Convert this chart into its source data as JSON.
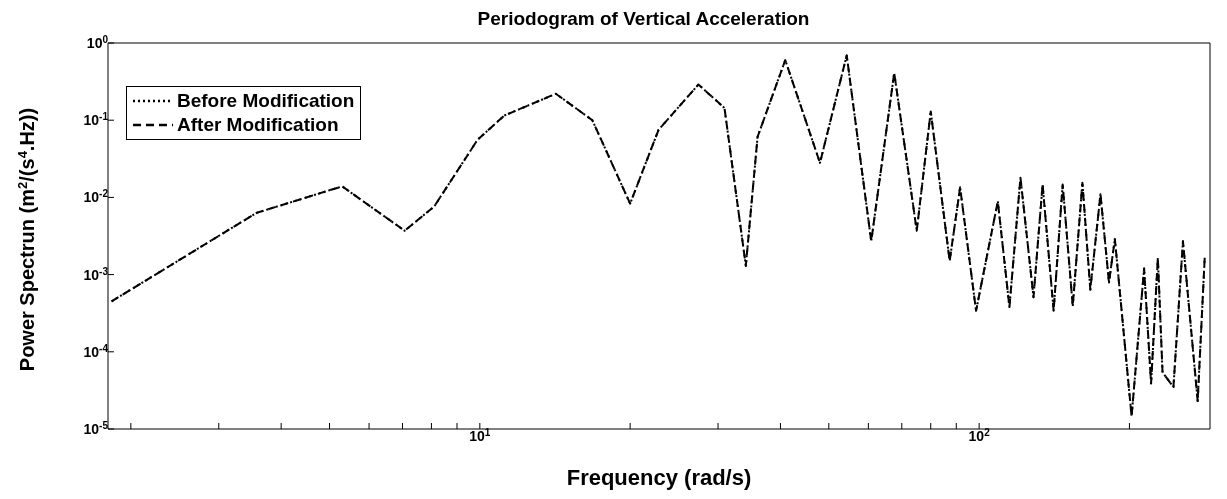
{
  "chart_data": {
    "type": "line",
    "title": "Periodogram of Vertical Acceleration",
    "xlabel": "Frequency (rad/s)",
    "ylabel": "Power Spectrun (m$^{2}$/(s$^{4}$.Hz))",
    "x": [
      1.83,
      3.57,
      5.3,
      7.07,
      8.1,
      9.9,
      11.2,
      14.2,
      16.8,
      20,
      22.8,
      27.4,
      30.9,
      34.1,
      36,
      40.9,
      48,
      54.3,
      60.8,
      67.6,
      75,
      80,
      87.3,
      91.6,
      98.6,
      109,
      115,
      121,
      128.5,
      134,
      141,
      147,
      154,
      161,
      167,
      175,
      182,
      187,
      202,
      214,
      221,
      228,
      233,
      245,
      256,
      274,
      283
    ],
    "series": [
      {
        "name": "Before Modification",
        "color": "#000000",
        "line_style": "dotted",
        "values": [
          0.00045,
          0.0063,
          0.0139,
          0.0037,
          0.0076,
          0.056,
          0.115,
          0.22,
          0.1,
          0.0083,
          0.075,
          0.29,
          0.144,
          0.0013,
          0.061,
          0.6,
          0.028,
          0.69,
          0.0027,
          0.41,
          0.0037,
          0.13,
          0.0015,
          0.0135,
          0.00034,
          0.0089,
          0.00038,
          0.018,
          0.00051,
          0.0147,
          0.00034,
          0.0147,
          0.00039,
          0.0155,
          0.00064,
          0.011,
          0.00079,
          0.0029,
          1.45e-05,
          0.0012,
          3.9e-05,
          0.00165,
          5.4e-05,
          3.5e-05,
          0.0027,
          2.3e-05,
          0.00165
        ]
      },
      {
        "name": "After Modification",
        "color": "#000000",
        "line_style": "dashed",
        "values": [
          0.00045,
          0.0063,
          0.0139,
          0.0037,
          0.0076,
          0.056,
          0.115,
          0.22,
          0.1,
          0.0083,
          0.075,
          0.29,
          0.144,
          0.0013,
          0.061,
          0.6,
          0.028,
          0.69,
          0.0027,
          0.41,
          0.0037,
          0.13,
          0.0015,
          0.0135,
          0.00034,
          0.0089,
          0.00038,
          0.018,
          0.00051,
          0.0147,
          0.00034,
          0.0147,
          0.00039,
          0.0155,
          0.00064,
          0.011,
          0.00079,
          0.0029,
          1.45e-05,
          0.0012,
          3.9e-05,
          0.00165,
          5.4e-05,
          3.5e-05,
          0.0027,
          2.3e-05,
          0.00165
        ]
      }
    ],
    "log": "xy",
    "xlim": [
      1.8,
      290
    ],
    "ylim": [
      1e-05,
      1
    ],
    "xticks": [
      {
        "value": 2,
        "label": null
      },
      {
        "value": 3,
        "label": null
      },
      {
        "value": 4,
        "label": null
      },
      {
        "value": 5,
        "label": null
      },
      {
        "value": 6,
        "label": null
      },
      {
        "value": 7,
        "label": null
      },
      {
        "value": 8,
        "label": null
      },
      {
        "value": 9,
        "label": null
      },
      {
        "value": 10,
        "label": "10$^{1}$"
      },
      {
        "value": 20,
        "label": null
      },
      {
        "value": 30,
        "label": null
      },
      {
        "value": 40,
        "label": null
      },
      {
        "value": 50,
        "label": null
      },
      {
        "value": 60,
        "label": null
      },
      {
        "value": 70,
        "label": null
      },
      {
        "value": 80,
        "label": null
      },
      {
        "value": 90,
        "label": null
      },
      {
        "value": 100,
        "label": "10$^{2}$"
      },
      {
        "value": 200,
        "label": null
      }
    ],
    "yticks": [
      {
        "value": 1e-05,
        "label": "10$^{-5}$"
      },
      {
        "value": 0.0001,
        "label": "10$^{-4}$"
      },
      {
        "value": 0.001,
        "label": "10$^{-3}$"
      },
      {
        "value": 0.01,
        "label": "10$^{-2}$"
      },
      {
        "value": 0.1,
        "label": "10$^{-1}$"
      },
      {
        "value": 1,
        "label": "10$^{0}$"
      }
    ],
    "legend": "top left",
    "marker": "none"
  }
}
